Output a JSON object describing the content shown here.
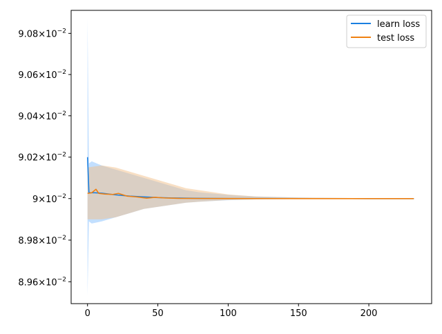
{
  "chart_data": {
    "type": "line",
    "title": "",
    "xlabel": "",
    "ylabel": "",
    "xlim": [
      -11.65,
      244.65
    ],
    "ylim": [
      0.089495,
      0.090912
    ],
    "yscale": "log",
    "grid": false,
    "legend": {
      "placement": "top-right"
    },
    "x_ticks": [
      {
        "value": 0,
        "label": "0"
      },
      {
        "value": 50,
        "label": "50"
      },
      {
        "value": 100,
        "label": "100"
      },
      {
        "value": 150,
        "label": "150"
      },
      {
        "value": 200,
        "label": "200"
      }
    ],
    "y_ticks": [
      {
        "value": 0.0896,
        "mantissa": "8.96",
        "exponent": "−2"
      },
      {
        "value": 0.0898,
        "mantissa": "8.98",
        "exponent": "−2"
      },
      {
        "value": 0.09,
        "mantissa": "9",
        "exponent": "−2"
      },
      {
        "value": 0.0902,
        "mantissa": "9.02",
        "exponent": "−2"
      },
      {
        "value": 0.0904,
        "mantissa": "9.04",
        "exponent": "−2"
      },
      {
        "value": 0.0906,
        "mantissa": "9.06",
        "exponent": "−2"
      },
      {
        "value": 0.0908,
        "mantissa": "9.08",
        "exponent": "−2"
      }
    ],
    "tick_base": "10",
    "series": [
      {
        "name": "learn loss",
        "color": "#1f77b4",
        "line_color": "#1a7fe0",
        "band_color": "#8fc5ff",
        "points": [
          [
            0,
            0.0902
          ],
          [
            1,
            0.09003
          ],
          [
            2,
            0.090028
          ],
          [
            5,
            0.090028
          ],
          [
            10,
            0.090026
          ],
          [
            15,
            0.090022
          ],
          [
            20,
            0.090018
          ],
          [
            30,
            0.090012
          ],
          [
            40,
            0.090008
          ],
          [
            50,
            0.090005
          ],
          [
            60,
            0.090003
          ],
          [
            70,
            0.090002
          ],
          [
            80,
            0.090001
          ],
          [
            100,
            0.0900005
          ],
          [
            130,
            0.0900002
          ],
          [
            160,
            0.0900001
          ],
          [
            200,
            0.09
          ],
          [
            232,
            0.09
          ]
        ],
        "band": [
          [
            0,
            0.089535,
            0.09087
          ],
          [
            1,
            0.08989,
            0.09017
          ],
          [
            3,
            0.08988,
            0.09018
          ],
          [
            10,
            0.08989,
            0.09016
          ],
          [
            20,
            0.08991,
            0.09014
          ],
          [
            30,
            0.08993,
            0.09012
          ],
          [
            40,
            0.08995,
            0.0901
          ],
          [
            50,
            0.08996,
            0.09008
          ],
          [
            60,
            0.08997,
            0.09006
          ],
          [
            70,
            0.08998,
            0.09004
          ],
          [
            80,
            0.089985,
            0.09003
          ],
          [
            100,
            0.089992,
            0.090018
          ],
          [
            120,
            0.089996,
            0.09001
          ],
          [
            150,
            0.089998,
            0.090005
          ],
          [
            200,
            0.0899995,
            0.090002
          ],
          [
            232,
            0.0899998,
            0.0900008
          ]
        ]
      },
      {
        "name": "test loss",
        "color": "#ff7f0e",
        "line_color": "#f08010",
        "band_color": "#f1c08a",
        "points": [
          [
            0,
            0.090025
          ],
          [
            3,
            0.090028
          ],
          [
            6,
            0.090045
          ],
          [
            8,
            0.090025
          ],
          [
            12,
            0.090022
          ],
          [
            18,
            0.09002
          ],
          [
            22,
            0.090025
          ],
          [
            28,
            0.090012
          ],
          [
            35,
            0.090008
          ],
          [
            42,
            0.090002
          ],
          [
            48,
            0.090006
          ],
          [
            55,
            0.090003
          ],
          [
            65,
            0.090001
          ],
          [
            80,
            0.0900005
          ],
          [
            100,
            0.0900002
          ],
          [
            150,
            0.09
          ],
          [
            232,
            0.09
          ]
        ],
        "band": [
          [
            0,
            0.0899,
            0.09015
          ],
          [
            10,
            0.0899,
            0.09016
          ],
          [
            20,
            0.08991,
            0.09015
          ],
          [
            30,
            0.08993,
            0.09013
          ],
          [
            40,
            0.08995,
            0.09011
          ],
          [
            50,
            0.08996,
            0.09009
          ],
          [
            60,
            0.08997,
            0.09007
          ],
          [
            70,
            0.08998,
            0.09005
          ],
          [
            80,
            0.089985,
            0.09004
          ],
          [
            100,
            0.089993,
            0.09002
          ],
          [
            120,
            0.089996,
            0.09001
          ],
          [
            150,
            0.089998,
            0.090005
          ],
          [
            200,
            0.0899995,
            0.090002
          ],
          [
            232,
            0.0899998,
            0.0900008
          ]
        ]
      }
    ]
  }
}
